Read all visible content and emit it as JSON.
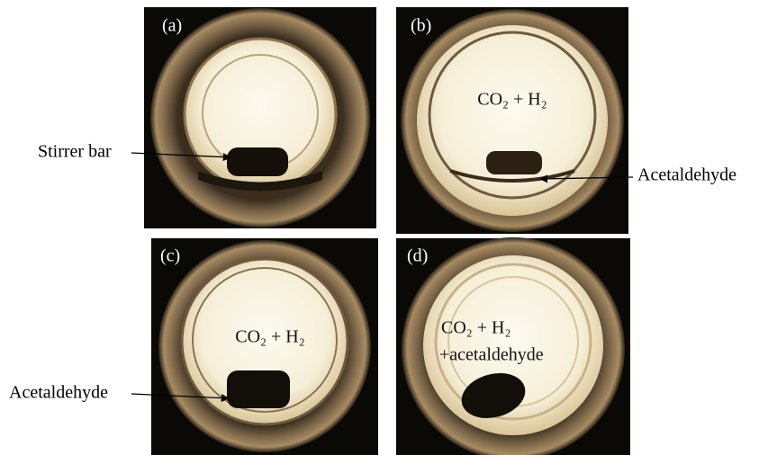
{
  "panels": [
    {
      "label": "(a)",
      "caption": "Stirrer bar"
    },
    {
      "label": "(b)",
      "text_lines": [
        "CO₂ + H₂"
      ],
      "caption": "Acetaldehyde"
    },
    {
      "label": "(c)",
      "text_lines": [
        "CO₂ + H₂"
      ],
      "caption": "Acetaldehyde"
    },
    {
      "label": "(d)",
      "text_lines": [
        "CO₂ + H₂",
        "+acetaldehyde"
      ]
    }
  ]
}
